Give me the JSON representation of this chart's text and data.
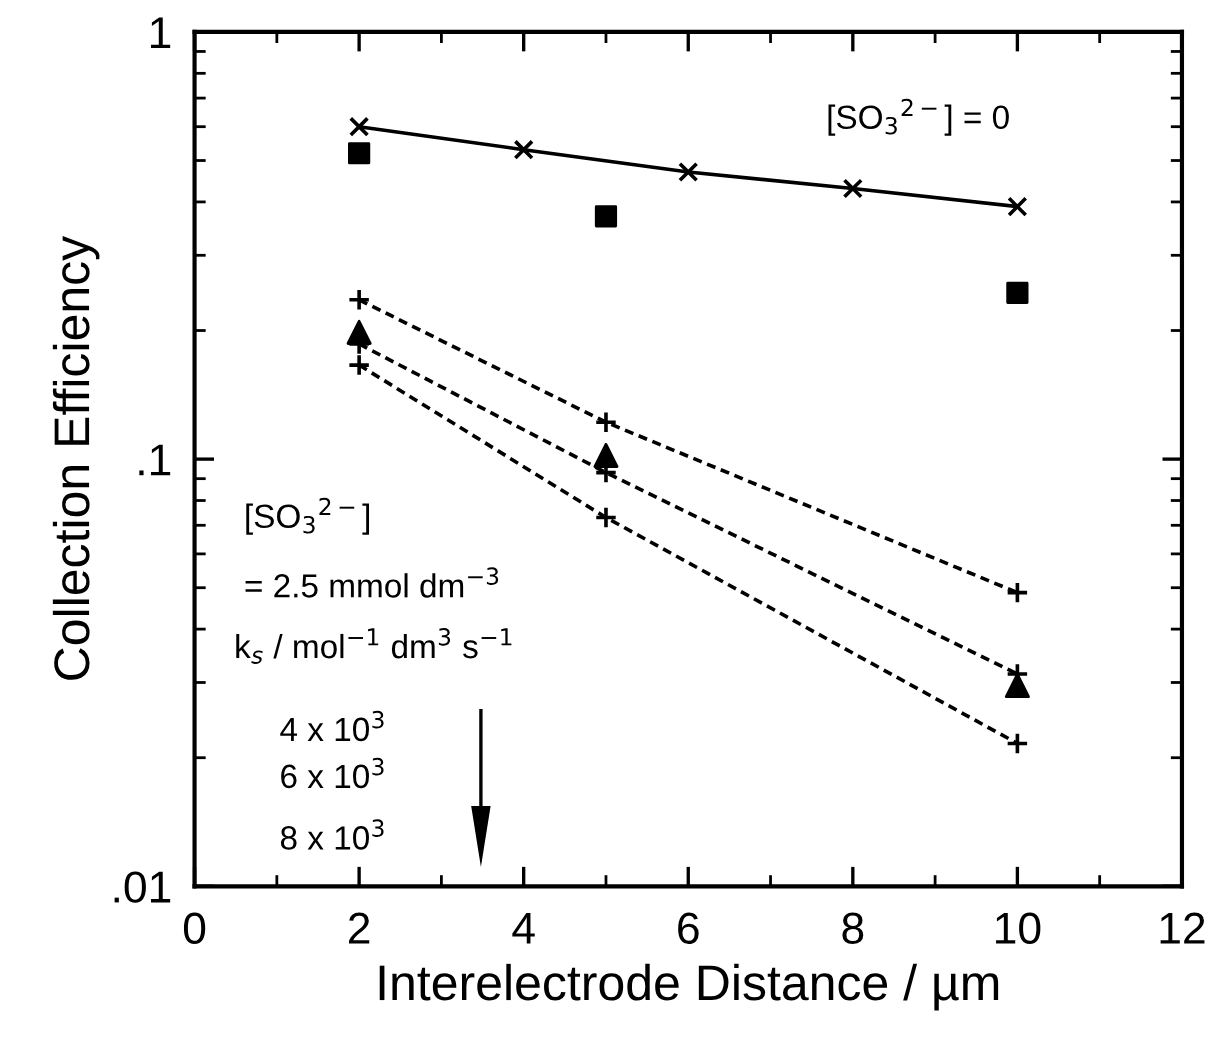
{
  "chart_data": {
    "type": "line",
    "xlabel": "Interelectrode Distance / µm",
    "ylabel": "Collection Efficiency",
    "log": "y",
    "xlim": [
      0,
      12
    ],
    "xticks": [
      0,
      2,
      4,
      6,
      8,
      10,
      12
    ],
    "ylim": [
      0.01,
      1
    ],
    "yticks": [
      {
        "value": 0.01,
        "label": ".01"
      },
      {
        "value": 0.1,
        "label": ".1"
      },
      {
        "value": 1,
        "label": "1"
      }
    ],
    "grid": false,
    "legend": false,
    "annotations": [
      "[SO$_{3}$$^{2−}$] = 0",
      "[SO$_{3}$$^{2−}$]",
      "= 2.5 mmol dm$^{−3}$",
      "k$_{s}$ / mol$^{−1}$ dm$^{3}$ s$^{−1}$",
      "4 x 10$^{3}$",
      "6 x 10$^{3}$",
      "8 x 10$^{3}$"
    ],
    "series": [
      {
        "x": [
          2,
          4,
          6,
          8,
          10
        ],
        "values": [
          0.6,
          0.53,
          0.47,
          0.43,
          0.39
        ],
        "color": "#000000",
        "marker": "x",
        "line_style": "solid"
      },
      {
        "type": "scatter",
        "x": [
          2,
          5,
          10
        ],
        "values": [
          0.52,
          0.37,
          0.245
        ],
        "color": "#000000",
        "marker": "square"
      },
      {
        "type": "scatter",
        "x": [
          2,
          5,
          10
        ],
        "values": [
          0.198,
          0.102,
          0.0295
        ],
        "color": "#000000",
        "marker": "triangle"
      },
      {
        "x": [
          2,
          5,
          10
        ],
        "values": [
          0.236,
          0.122,
          0.0487
        ],
        "color": "#000000",
        "marker": "cross",
        "line_style": "dashed"
      },
      {
        "x": [
          2,
          5,
          10
        ],
        "values": [
          0.186,
          0.093,
          0.0314
        ],
        "color": "#000000",
        "marker": "cross",
        "line_style": "dashed"
      },
      {
        "x": [
          2,
          5,
          10
        ],
        "values": [
          0.166,
          0.073,
          0.0216
        ],
        "color": "#000000",
        "marker": "cross",
        "line_style": "dashed"
      }
    ]
  }
}
